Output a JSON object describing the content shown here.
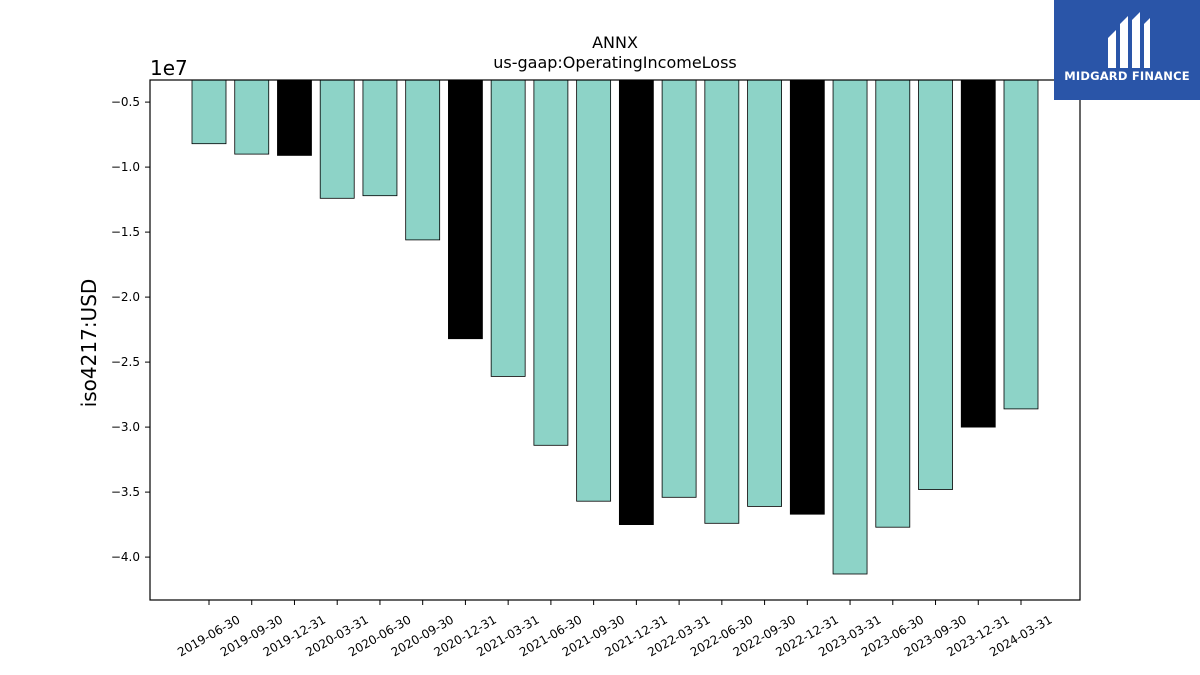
{
  "brand": {
    "name": "MIDGARD FINANCE",
    "bg_color": "#2a55a8",
    "fg_color": "#ffffff"
  },
  "chart_data": {
    "type": "bar",
    "title": "ANNX",
    "subtitle": "us-gaap:OperatingIncomeLoss",
    "xlabel": "",
    "ylabel": "iso4217:USD",
    "offset_label": "1e7",
    "categories": [
      "2019-06-30",
      "2019-09-30",
      "2019-12-31",
      "2020-03-31",
      "2020-06-30",
      "2020-09-30",
      "2020-12-31",
      "2021-03-31",
      "2021-06-30",
      "2021-09-30",
      "2021-12-31",
      "2022-03-31",
      "2022-06-30",
      "2022-09-30",
      "2022-12-31",
      "2023-03-31",
      "2023-06-30",
      "2023-09-30",
      "2023-12-31",
      "2024-03-31"
    ],
    "values": [
      -8200000,
      -9000000,
      -9100000,
      -12400000,
      -12200000,
      -15600000,
      -23200000,
      -26100000,
      -31400000,
      -35700000,
      -37500000,
      -35400000,
      -37400000,
      -36100000,
      -36700000,
      -41300000,
      -37700000,
      -34800000,
      -30000000,
      -28600000
    ],
    "bar_colors": [
      "#8dd3c7",
      "#8dd3c7",
      "#000000",
      "#8dd3c7",
      "#8dd3c7",
      "#8dd3c7",
      "#000000",
      "#8dd3c7",
      "#8dd3c7",
      "#8dd3c7",
      "#000000",
      "#8dd3c7",
      "#8dd3c7",
      "#8dd3c7",
      "#000000",
      "#8dd3c7",
      "#8dd3c7",
      "#8dd3c7",
      "#000000",
      "#8dd3c7"
    ],
    "ylim": [
      -43300000,
      -3300000
    ],
    "yticks": [
      -0.5,
      -1.0,
      -1.5,
      -2.0,
      -2.5,
      -3.0,
      -3.5,
      -4.0
    ],
    "ytick_labels": [
      "−0.5",
      "−1.0",
      "−1.5",
      "−2.0",
      "−2.5",
      "−3.0",
      "−3.5",
      "−4.0"
    ],
    "grid": false,
    "legend": "none"
  }
}
